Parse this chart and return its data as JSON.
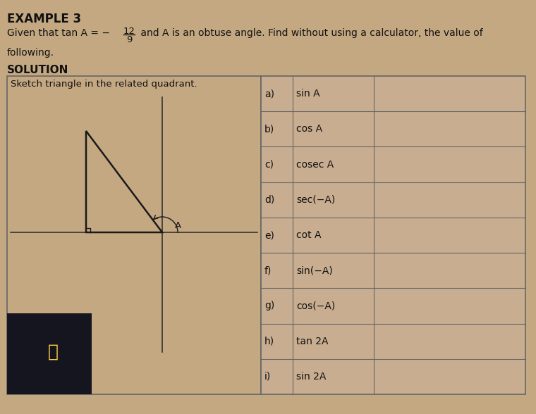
{
  "background_color": "#c4a882",
  "title": "EXAMPLE 3",
  "title_fontsize": 12,
  "solution_label": "SOLUTION",
  "sketch_label": "Sketch triangle in the related quadrant.",
  "table_rows": [
    [
      "a)",
      "sin A",
      ""
    ],
    [
      "b)",
      "cos A",
      ""
    ],
    [
      "c)",
      "cosec A",
      ""
    ],
    [
      "d)",
      "sec(−A)",
      ""
    ],
    [
      "e)",
      "cot A",
      ""
    ],
    [
      "f)",
      "sin(−A)",
      ""
    ],
    [
      "g)",
      "cos(−A)",
      ""
    ],
    [
      "h)",
      "tan 2A",
      ""
    ],
    [
      "i)",
      "sin 2A",
      ""
    ]
  ],
  "panel_bg": "#c4a882",
  "table_bg": "#c8ad90",
  "box_color": "#888888",
  "border_color": "#666666",
  "text_color": "#111111",
  "font_size": 10.5,
  "dark_photo_color": "#1a1a2e"
}
